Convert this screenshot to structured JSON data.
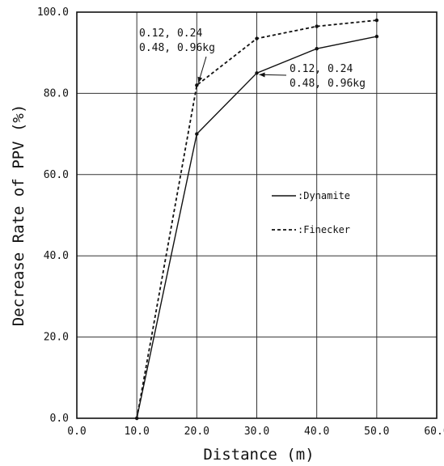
{
  "chart_data": {
    "type": "line",
    "xlabel": "Distance (m)",
    "ylabel": "Decrease Rate of PPV (%)",
    "xlim": [
      0,
      60
    ],
    "ylim": [
      0,
      100
    ],
    "xticks": [
      0,
      10,
      20,
      30,
      40,
      50,
      60
    ],
    "yticks": [
      0,
      20,
      40,
      60,
      80,
      100
    ],
    "xtick_labels": [
      "0.0",
      "10.0",
      "20.0",
      "30.0",
      "40.0",
      "50.0",
      "60.0"
    ],
    "ytick_labels": [
      "0.0",
      "20.0",
      "40.0",
      "60.0",
      "80.0",
      "100.0"
    ],
    "grid": true,
    "legend_position": "right-middle",
    "series": [
      {
        "name": ":Dynamite",
        "style": "solid",
        "x": [
          10,
          20,
          30,
          40,
          50
        ],
        "y": [
          0,
          70,
          85,
          91,
          94
        ]
      },
      {
        "name": ":Finecker",
        "style": "dashed",
        "x": [
          10,
          20,
          30,
          40,
          50
        ],
        "y": [
          0,
          82,
          93.5,
          96.5,
          98
        ]
      }
    ],
    "annotations": [
      {
        "series": ":Finecker",
        "line1": "0.12, 0.24",
        "line2": "0.48, 0.96kg",
        "point": [
          20,
          82
        ]
      },
      {
        "series": ":Dynamite",
        "line1": "0.12, 0.24",
        "line2": "0.48, 0.96kg",
        "point": [
          30,
          85
        ]
      }
    ]
  }
}
